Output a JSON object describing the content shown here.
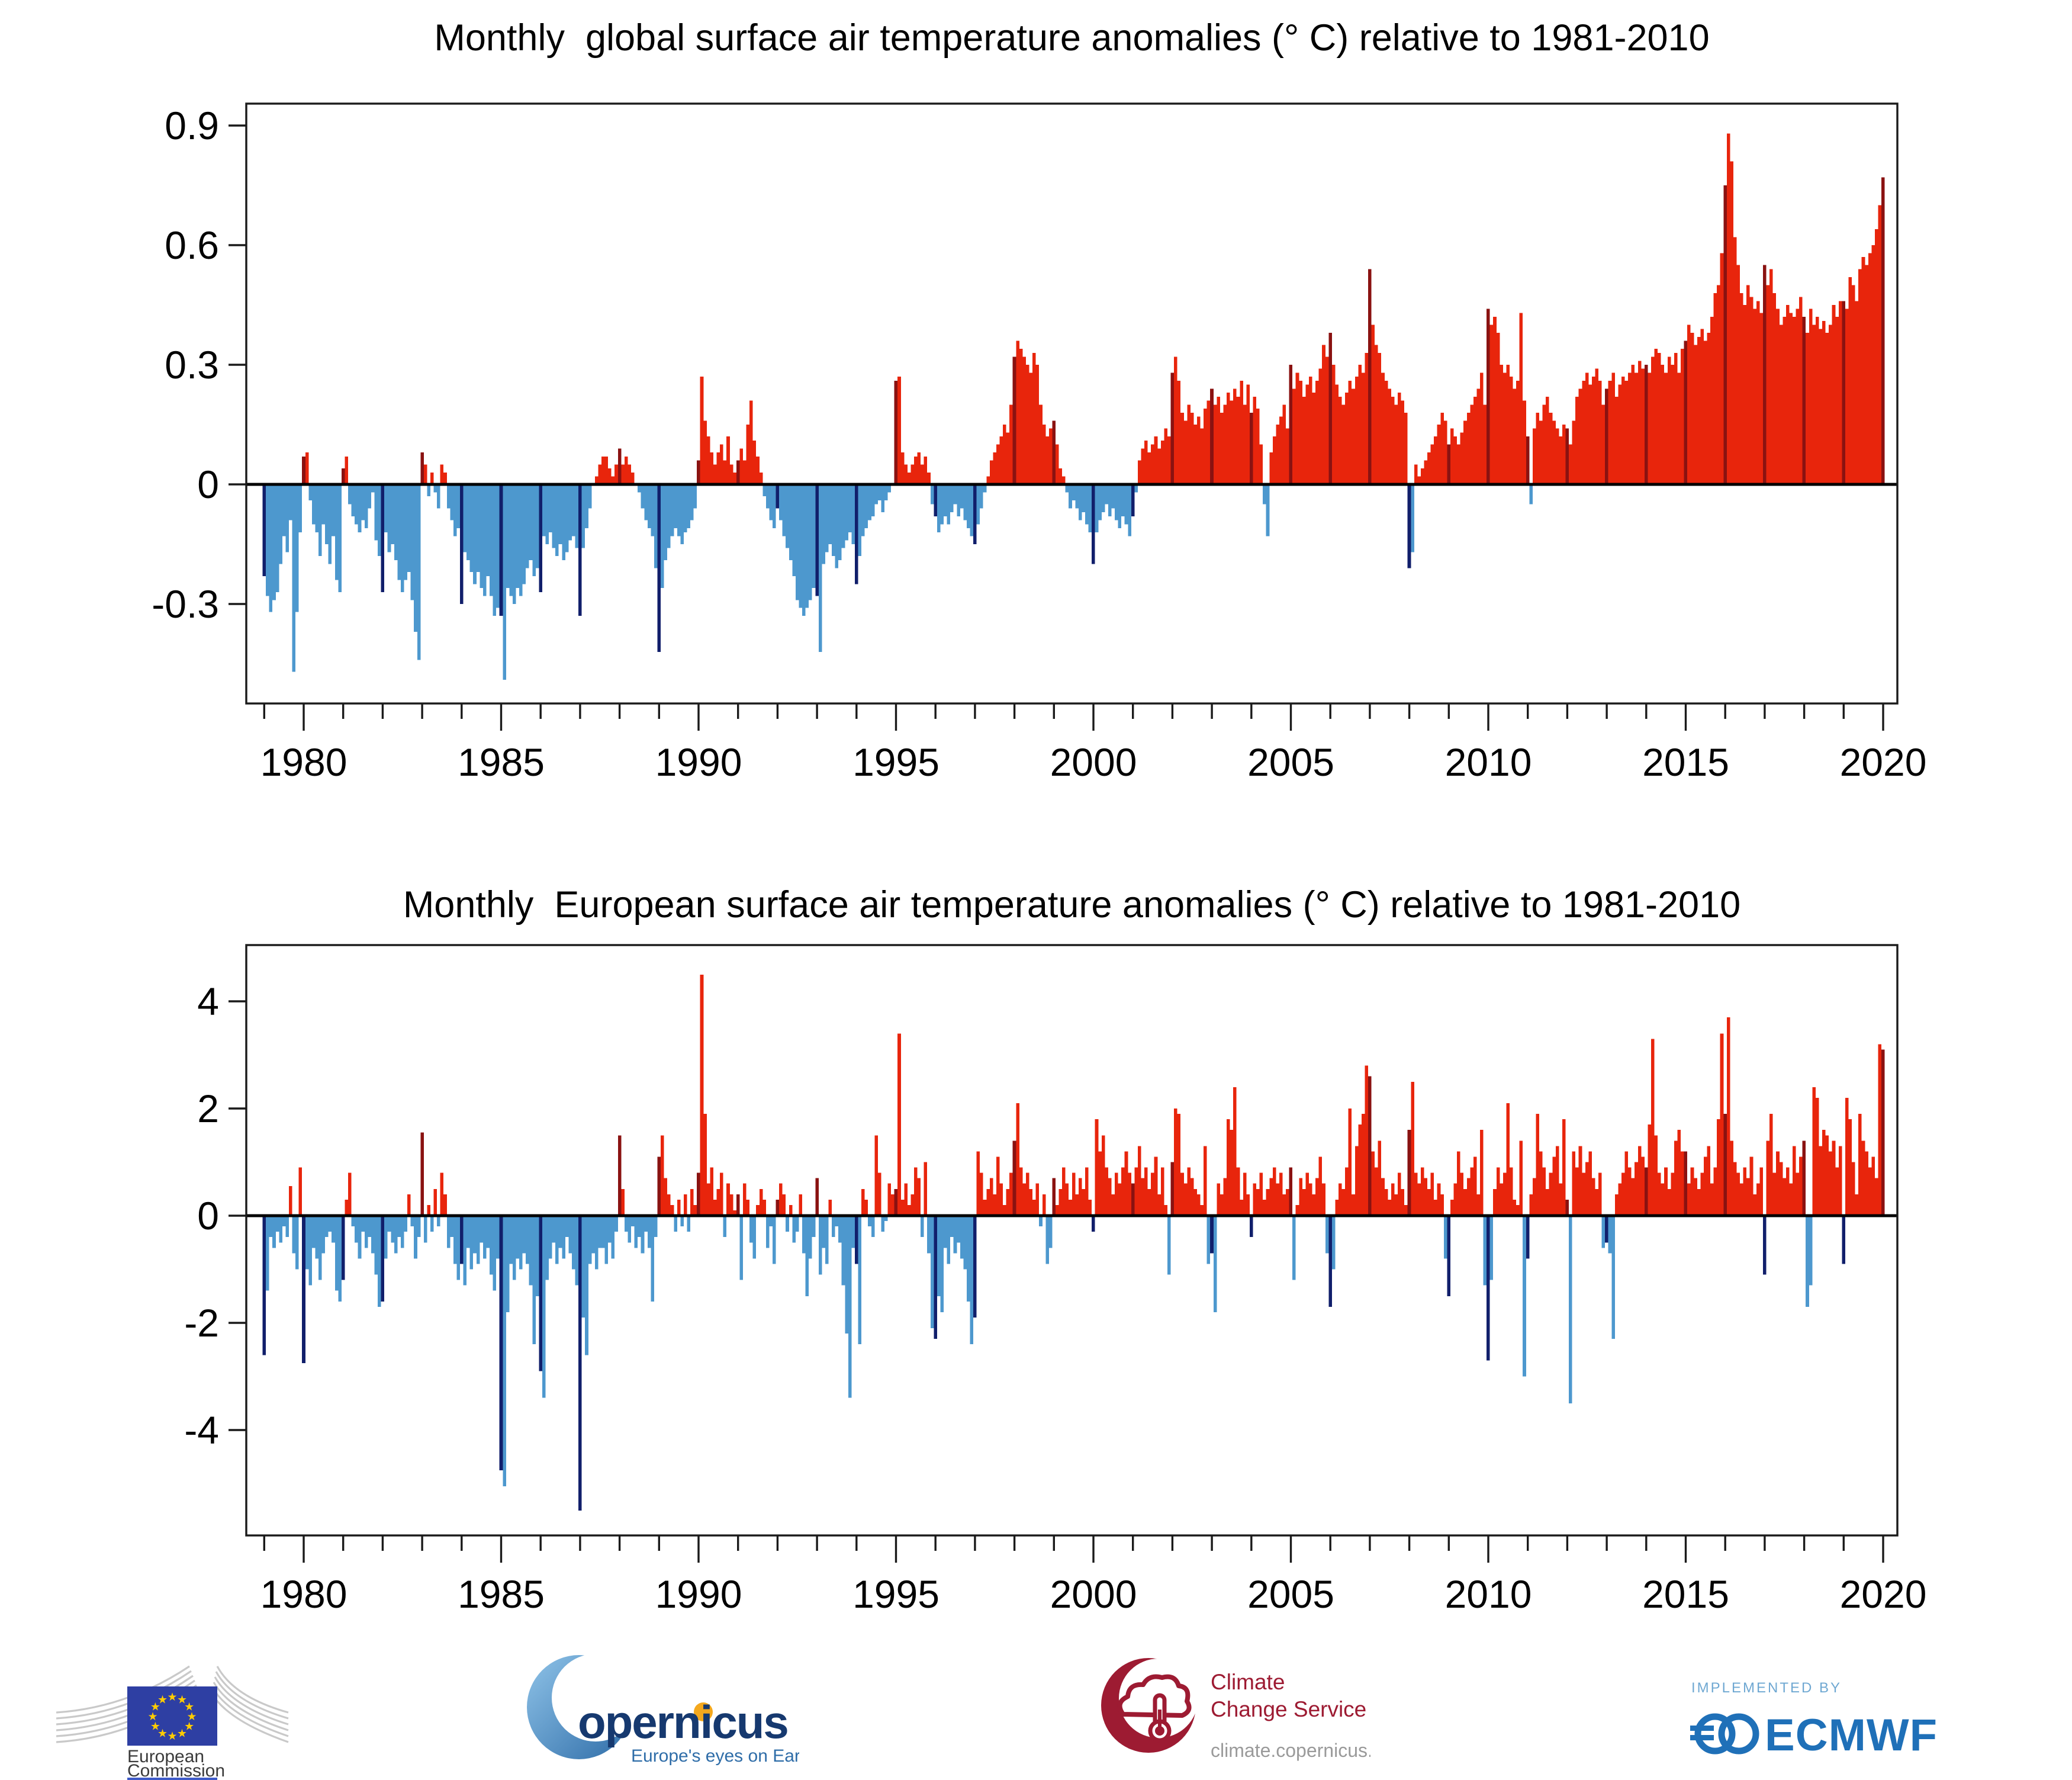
{
  "palette": {
    "positive": "#e8250c",
    "positive_highlight": "#8a1211",
    "negative": "#4d98ce",
    "negative_highlight": "#111f6b",
    "axis": "#1a1a1a",
    "zero_line": "#000000"
  },
  "charts": [
    {
      "type": "bar",
      "title": "Monthly  global surface air temperature anomalies (° C) relative to 1981-2010",
      "ylabel": "",
      "xlabel": "",
      "baseline_period": "1981-2010",
      "series_start": {
        "year": 1979,
        "month": 1
      },
      "series_end": {
        "year": 2020,
        "month": 1
      },
      "highlight_month": "January",
      "x_tick_labels": [
        "1980",
        "1985",
        "1990",
        "1995",
        "2000",
        "2005",
        "2010",
        "2015",
        "2020"
      ],
      "x_tick_years_labeled": [
        1980,
        1985,
        1990,
        1995,
        2000,
        2005,
        2010,
        2015,
        2020
      ],
      "y_ticks": [
        -0.3,
        0,
        0.3,
        0.6,
        0.9
      ],
      "y_tick_labels": [
        "-0.3",
        "0",
        "0.3",
        "0.6",
        "0.9"
      ],
      "ylim": [
        -0.55,
        0.955
      ],
      "values": [
        -0.23,
        -0.28,
        -0.32,
        -0.29,
        -0.27,
        -0.2,
        -0.13,
        -0.17,
        -0.09,
        -0.47,
        -0.32,
        -0.12,
        0.07,
        0.08,
        -0.04,
        -0.1,
        -0.12,
        -0.18,
        -0.1,
        -0.15,
        -0.2,
        -0.13,
        -0.24,
        -0.27,
        0.04,
        0.07,
        -0.05,
        -0.08,
        -0.1,
        -0.12,
        -0.09,
        -0.11,
        -0.06,
        -0.02,
        -0.14,
        -0.18,
        -0.27,
        -0.12,
        -0.17,
        -0.15,
        -0.19,
        -0.24,
        -0.27,
        -0.24,
        -0.22,
        -0.29,
        -0.37,
        -0.44,
        0.08,
        0.05,
        -0.03,
        0.03,
        -0.02,
        -0.06,
        0.05,
        0.03,
        -0.06,
        -0.09,
        -0.13,
        -0.11,
        -0.3,
        -0.17,
        -0.19,
        -0.22,
        -0.25,
        -0.22,
        -0.26,
        -0.28,
        -0.23,
        -0.28,
        -0.33,
        -0.31,
        -0.33,
        -0.49,
        -0.26,
        -0.28,
        -0.3,
        -0.26,
        -0.28,
        -0.25,
        -0.21,
        -0.19,
        -0.23,
        -0.21,
        -0.27,
        -0.13,
        -0.15,
        -0.12,
        -0.16,
        -0.18,
        -0.15,
        -0.19,
        -0.17,
        -0.14,
        -0.13,
        -0.16,
        -0.33,
        -0.16,
        -0.11,
        -0.06,
        0.0,
        0.02,
        0.05,
        0.07,
        0.07,
        0.04,
        0.02,
        0.05,
        0.09,
        0.05,
        0.07,
        0.05,
        0.03,
        0.0,
        -0.02,
        -0.06,
        -0.09,
        -0.11,
        -0.13,
        -0.21,
        -0.42,
        -0.26,
        -0.19,
        -0.16,
        -0.13,
        -0.11,
        -0.13,
        -0.15,
        -0.12,
        -0.11,
        -0.09,
        -0.06,
        0.06,
        0.27,
        0.16,
        0.12,
        0.08,
        0.05,
        0.08,
        0.1,
        0.06,
        0.12,
        0.05,
        0.03,
        0.06,
        0.09,
        0.06,
        0.15,
        0.21,
        0.11,
        0.07,
        0.03,
        -0.03,
        -0.06,
        -0.09,
        -0.11,
        -0.06,
        -0.09,
        -0.13,
        -0.16,
        -0.19,
        -0.23,
        -0.29,
        -0.31,
        -0.33,
        -0.31,
        -0.29,
        -0.26,
        -0.28,
        -0.42,
        -0.2,
        -0.17,
        -0.15,
        -0.18,
        -0.21,
        -0.19,
        -0.16,
        -0.14,
        -0.12,
        -0.15,
        -0.25,
        -0.18,
        -0.13,
        -0.11,
        -0.09,
        -0.08,
        -0.05,
        -0.04,
        -0.07,
        -0.04,
        -0.02,
        0.0,
        0.26,
        0.27,
        0.08,
        0.05,
        0.03,
        0.05,
        0.07,
        0.08,
        0.05,
        0.07,
        0.03,
        -0.05,
        -0.08,
        -0.12,
        -0.1,
        -0.08,
        -0.1,
        -0.07,
        -0.05,
        -0.08,
        -0.06,
        -0.09,
        -0.11,
        -0.13,
        -0.15,
        -0.1,
        -0.06,
        -0.02,
        0.02,
        0.06,
        0.08,
        0.1,
        0.12,
        0.15,
        0.13,
        0.2,
        0.32,
        0.36,
        0.34,
        0.32,
        0.3,
        0.28,
        0.33,
        0.3,
        0.2,
        0.15,
        0.12,
        0.14,
        0.16,
        0.1,
        0.04,
        0.02,
        -0.02,
        -0.06,
        -0.04,
        -0.06,
        -0.09,
        -0.07,
        -0.1,
        -0.12,
        -0.2,
        -0.12,
        -0.09,
        -0.07,
        -0.05,
        -0.08,
        -0.06,
        -0.09,
        -0.11,
        -0.08,
        -0.1,
        -0.13,
        -0.08,
        -0.02,
        0.06,
        0.09,
        0.11,
        0.08,
        0.1,
        0.12,
        0.09,
        0.11,
        0.14,
        0.12,
        0.28,
        0.32,
        0.26,
        0.18,
        0.16,
        0.2,
        0.18,
        0.15,
        0.17,
        0.14,
        0.19,
        0.21,
        0.24,
        0.2,
        0.22,
        0.18,
        0.2,
        0.23,
        0.21,
        0.24,
        0.22,
        0.26,
        0.2,
        0.25,
        0.18,
        0.22,
        0.19,
        0.1,
        -0.05,
        -0.13,
        0.08,
        0.12,
        0.15,
        0.17,
        0.2,
        0.14,
        0.3,
        0.24,
        0.28,
        0.26,
        0.22,
        0.25,
        0.27,
        0.23,
        0.26,
        0.29,
        0.35,
        0.32,
        0.38,
        0.3,
        0.25,
        0.22,
        0.2,
        0.23,
        0.26,
        0.24,
        0.27,
        0.3,
        0.28,
        0.33,
        0.54,
        0.4,
        0.35,
        0.33,
        0.28,
        0.26,
        0.24,
        0.22,
        0.2,
        0.23,
        0.21,
        0.18,
        -0.21,
        -0.17,
        0.05,
        0.02,
        0.04,
        0.06,
        0.08,
        0.1,
        0.12,
        0.15,
        0.18,
        0.16,
        0.1,
        0.14,
        0.12,
        0.1,
        0.13,
        0.16,
        0.18,
        0.2,
        0.22,
        0.24,
        0.28,
        0.2,
        0.44,
        0.4,
        0.42,
        0.38,
        0.3,
        0.28,
        0.3,
        0.27,
        0.24,
        0.26,
        0.43,
        0.21,
        0.12,
        -0.05,
        0.14,
        0.18,
        0.16,
        0.2,
        0.22,
        0.18,
        0.16,
        0.14,
        0.12,
        0.15,
        0.14,
        0.1,
        0.16,
        0.22,
        0.24,
        0.26,
        0.28,
        0.25,
        0.27,
        0.29,
        0.26,
        0.2,
        0.24,
        0.26,
        0.28,
        0.22,
        0.25,
        0.27,
        0.26,
        0.28,
        0.3,
        0.28,
        0.31,
        0.29,
        0.3,
        0.28,
        0.32,
        0.34,
        0.33,
        0.3,
        0.28,
        0.32,
        0.3,
        0.33,
        0.28,
        0.34,
        0.36,
        0.4,
        0.38,
        0.35,
        0.37,
        0.39,
        0.36,
        0.38,
        0.42,
        0.48,
        0.5,
        0.58,
        0.75,
        0.88,
        0.81,
        0.62,
        0.55,
        0.48,
        0.45,
        0.5,
        0.47,
        0.44,
        0.46,
        0.43,
        0.55,
        0.5,
        0.54,
        0.48,
        0.44,
        0.4,
        0.42,
        0.45,
        0.43,
        0.42,
        0.44,
        0.47,
        0.42,
        0.38,
        0.44,
        0.4,
        0.42,
        0.39,
        0.41,
        0.38,
        0.4,
        0.45,
        0.42,
        0.46,
        0.46,
        0.44,
        0.52,
        0.5,
        0.46,
        0.54,
        0.57,
        0.55,
        0.58,
        0.6,
        0.64,
        0.7,
        0.77
      ]
    },
    {
      "type": "bar",
      "title": "Monthly  European surface air temperature anomalies (° C) relative to 1981-2010",
      "ylabel": "",
      "xlabel": "",
      "baseline_period": "1981-2010",
      "series_start": {
        "year": 1979,
        "month": 1
      },
      "series_end": {
        "year": 2020,
        "month": 1
      },
      "highlight_month": "January",
      "x_tick_labels": [
        "1980",
        "1985",
        "1990",
        "1995",
        "2000",
        "2005",
        "2010",
        "2015",
        "2020"
      ],
      "x_tick_years_labeled": [
        1980,
        1985,
        1990,
        1995,
        2000,
        2005,
        2010,
        2015,
        2020
      ],
      "y_ticks": [
        -4,
        -2,
        0,
        2,
        4
      ],
      "y_tick_labels": [
        "-4",
        "-2",
        "0",
        "2",
        "4"
      ],
      "ylim": [
        -5.97,
        5.05
      ],
      "values": [
        -2.6,
        -1.4,
        -0.4,
        -0.6,
        -0.3,
        -0.5,
        -0.2,
        -0.4,
        0.55,
        -0.7,
        -1.0,
        0.9,
        -2.75,
        -1.0,
        -1.3,
        -0.6,
        -0.8,
        -1.2,
        -0.7,
        -0.4,
        -0.3,
        -0.5,
        -1.4,
        -1.6,
        -1.2,
        0.3,
        0.8,
        -0.2,
        -0.5,
        -0.8,
        -0.3,
        -0.6,
        -0.4,
        -0.7,
        -1.1,
        -1.7,
        -1.6,
        -0.8,
        -0.3,
        -0.5,
        -0.7,
        -0.4,
        -0.6,
        -0.3,
        0.4,
        -0.2,
        -0.8,
        -0.4,
        1.55,
        -0.5,
        0.2,
        -0.3,
        0.5,
        -0.2,
        0.8,
        0.4,
        -0.6,
        -0.4,
        -0.9,
        -1.2,
        -0.9,
        -1.3,
        -0.6,
        -1.0,
        -0.7,
        -0.9,
        -0.5,
        -0.8,
        -0.6,
        -1.1,
        -1.4,
        -0.8,
        -4.75,
        -5.05,
        -1.8,
        -0.9,
        -1.2,
        -0.8,
        -1.0,
        -0.7,
        -0.9,
        -1.3,
        -2.4,
        -1.5,
        -2.9,
        -3.4,
        -1.2,
        -0.8,
        -0.5,
        -0.9,
        -0.6,
        -0.8,
        -0.4,
        -0.7,
        -1.0,
        -1.3,
        -5.5,
        -1.9,
        -2.6,
        -0.9,
        -0.7,
        -1.0,
        -0.6,
        -0.6,
        -0.9,
        -0.5,
        -0.8,
        -0.3,
        1.5,
        0.5,
        -0.3,
        -0.5,
        -0.2,
        -0.6,
        -0.4,
        -0.7,
        -0.3,
        -0.6,
        -1.6,
        -0.4,
        1.1,
        1.5,
        0.7,
        0.4,
        0.2,
        -0.3,
        0.3,
        -0.2,
        0.4,
        -0.3,
        0.5,
        0.2,
        0.8,
        4.5,
        1.9,
        0.6,
        0.9,
        0.3,
        0.5,
        0.8,
        -0.4,
        0.6,
        0.4,
        0.1,
        0.4,
        -1.2,
        0.6,
        0.3,
        -0.5,
        -0.8,
        0.2,
        0.5,
        0.3,
        -0.6,
        -0.2,
        -0.9,
        0.3,
        0.6,
        0.4,
        -0.3,
        0.2,
        -0.5,
        -0.3,
        0.4,
        -0.7,
        -1.5,
        -0.8,
        -0.4,
        0.7,
        -1.1,
        -0.6,
        -0.9,
        0.3,
        -0.4,
        -0.2,
        -0.5,
        -1.3,
        -2.2,
        -3.4,
        -0.6,
        -0.9,
        -2.4,
        0.5,
        0.3,
        -0.2,
        -0.4,
        1.5,
        0.8,
        -0.3,
        -0.1,
        0.6,
        0.4,
        0.5,
        3.4,
        0.3,
        0.6,
        0.2,
        0.4,
        0.9,
        0.7,
        -0.4,
        1.0,
        -0.7,
        -2.1,
        -2.3,
        -1.5,
        -1.8,
        -0.6,
        -0.9,
        -0.4,
        -0.7,
        -0.5,
        -0.8,
        -1.0,
        -1.6,
        -2.4,
        -1.9,
        1.2,
        0.8,
        0.3,
        0.5,
        0.7,
        0.4,
        1.1,
        0.6,
        0.2,
        0.5,
        0.8,
        1.4,
        2.1,
        0.9,
        0.6,
        0.8,
        0.5,
        0.3,
        0.6,
        -0.2,
        0.4,
        -0.9,
        -0.6,
        0.7,
        0.2,
        0.5,
        0.9,
        0.6,
        0.3,
        0.8,
        0.4,
        0.7,
        0.5,
        0.9,
        0.3,
        -0.3,
        1.8,
        1.2,
        1.5,
        0.9,
        0.7,
        0.4,
        0.8,
        0.6,
        0.9,
        1.2,
        0.8,
        0.6,
        0.9,
        1.3,
        0.7,
        0.9,
        0.5,
        0.8,
        1.1,
        0.4,
        0.9,
        0.2,
        -1.1,
        1.0,
        2.0,
        1.9,
        0.8,
        0.6,
        0.9,
        0.7,
        0.5,
        0.4,
        0.2,
        1.3,
        -0.9,
        -0.7,
        -1.8,
        0.6,
        0.4,
        0.7,
        1.8,
        1.6,
        2.4,
        0.9,
        0.3,
        0.8,
        0.4,
        -0.4,
        0.6,
        0.5,
        0.8,
        0.3,
        0.5,
        0.7,
        0.9,
        0.6,
        0.8,
        0.4,
        0.5,
        0.9,
        -1.2,
        0.2,
        0.7,
        0.5,
        0.8,
        0.6,
        0.4,
        0.7,
        1.1,
        0.6,
        -0.7,
        -1.7,
        -1.0,
        0.3,
        0.6,
        0.5,
        0.9,
        2.0,
        0.4,
        1.3,
        1.7,
        1.9,
        2.8,
        2.6,
        1.2,
        0.9,
        1.4,
        0.7,
        0.5,
        0.3,
        0.6,
        0.4,
        0.8,
        0.5,
        0.2,
        1.6,
        2.5,
        0.8,
        0.6,
        0.9,
        0.7,
        0.5,
        0.8,
        0.3,
        0.6,
        0.4,
        -0.8,
        -1.5,
        0.3,
        0.6,
        1.2,
        0.8,
        0.5,
        0.7,
        0.9,
        1.1,
        0.4,
        1.6,
        -1.3,
        -2.7,
        -1.2,
        0.5,
        0.9,
        0.6,
        0.8,
        2.1,
        0.9,
        0.3,
        0.2,
        1.4,
        -3.0,
        -0.8,
        0.4,
        0.7,
        1.9,
        1.2,
        0.9,
        0.5,
        0.8,
        1.1,
        1.3,
        0.6,
        1.8,
        0.3,
        -3.5,
        1.2,
        0.9,
        1.3,
        0.8,
        1.0,
        1.2,
        0.7,
        0.5,
        0.8,
        -0.6,
        -0.5,
        -0.7,
        -2.3,
        0.4,
        0.6,
        0.8,
        1.2,
        0.9,
        0.7,
        1.0,
        1.3,
        1.1,
        0.9,
        1.7,
        3.3,
        1.5,
        0.8,
        0.6,
        0.9,
        0.5,
        0.8,
        1.4,
        1.6,
        1.2,
        1.2,
        0.6,
        0.9,
        0.7,
        0.5,
        0.8,
        1.1,
        1.3,
        0.6,
        0.9,
        1.8,
        3.4,
        1.9,
        3.7,
        1.4,
        1.0,
        0.8,
        0.6,
        0.9,
        0.7,
        1.1,
        0.4,
        0.6,
        0.9,
        -1.1,
        1.4,
        1.9,
        0.8,
        1.2,
        1.0,
        0.7,
        0.9,
        0.6,
        1.3,
        0.8,
        1.1,
        1.4,
        -1.7,
        -1.3,
        2.4,
        2.2,
        1.3,
        1.6,
        1.5,
        1.2,
        1.4,
        0.9,
        1.3,
        -0.9,
        2.2,
        1.8,
        1.0,
        0.4,
        1.9,
        1.4,
        1.2,
        0.9,
        1.1,
        0.7,
        3.2,
        3.1
      ]
    }
  ],
  "footer": {
    "european_commission": {
      "line1": "European",
      "line2": "Commission",
      "flag_color": "#2e3fa3",
      "star_color": "#ffcc00",
      "text_color": "#3b3b3b",
      "bar_color": "#3f5bc8"
    },
    "copernicus": {
      "wordmark": "opernicus",
      "tagline": "Europe's eyes on Earth",
      "wordmark_color": "#16396f",
      "crescent_color": "#5f9fd0",
      "dot_color": "#f4a81d",
      "tagline_color": "#2f6da8"
    },
    "climate_change_service": {
      "line1": "Climate",
      "line2": "Change Service",
      "url": "climate.copernicus.eu",
      "emblem_color": "#9d1b32",
      "url_color": "#9a9a9a"
    },
    "ecmwf": {
      "implemented_by": "IMPLEMENTED BY",
      "name": "ECMWF",
      "brand_color": "#1f70b8",
      "light_color": "#6fa8d2"
    }
  }
}
